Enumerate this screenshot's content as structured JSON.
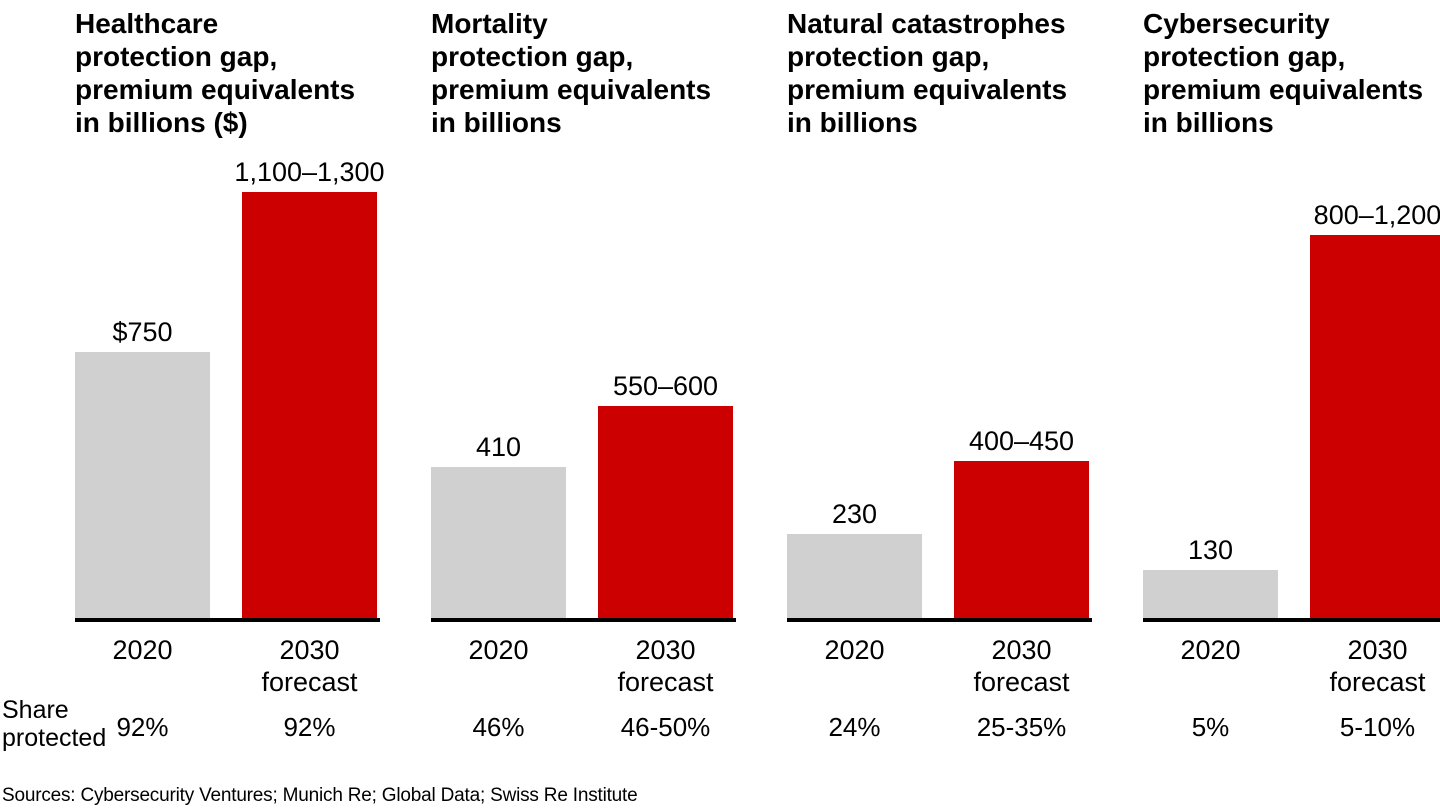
{
  "colors": {
    "bar_2020_gray": "#d0d0d0",
    "bar_2030_red": "#cc0000",
    "axis_black": "#000000",
    "text_black": "#000000",
    "background": "#ffffff"
  },
  "share_protected_label": "Share\nprotected",
  "sources": "Sources: Cybersecurity Ventures; Munich Re; Global Data; Swiss Re Institute",
  "chart_data": [
    {
      "type": "bar",
      "title": "Healthcare\nprotection gap,\npremium equivalents\nin billions ($)",
      "categories": [
        "2020",
        "2030\nforecast"
      ],
      "values": [
        750,
        [
          1100,
          1300
        ]
      ],
      "value_labels": [
        "$750",
        "1,100–1,300"
      ],
      "share_protected": [
        "92%",
        "92%"
      ],
      "bar_colors": [
        "#d0d0d0",
        "#cc0000"
      ],
      "grid": false,
      "legend": "none"
    },
    {
      "type": "bar",
      "title": "Mortality\nprotection gap,\npremium equivalents\nin billions",
      "categories": [
        "2020",
        "2030\nforecast"
      ],
      "values": [
        410,
        [
          550,
          600
        ]
      ],
      "value_labels": [
        "410",
        "550–600"
      ],
      "share_protected": [
        "46%",
        "46-50%"
      ],
      "bar_colors": [
        "#d0d0d0",
        "#cc0000"
      ],
      "grid": false,
      "legend": "none"
    },
    {
      "type": "bar",
      "title": "Natural catastrophes\nprotection gap,\npremium equivalents\nin billions",
      "categories": [
        "2020",
        "2030\nforecast"
      ],
      "values": [
        230,
        [
          400,
          450
        ]
      ],
      "value_labels": [
        "230",
        "400–450"
      ],
      "share_protected": [
        "24%",
        "25-35%"
      ],
      "bar_colors": [
        "#d0d0d0",
        "#cc0000"
      ],
      "grid": false,
      "legend": "none"
    },
    {
      "type": "bar",
      "title": "Cybersecurity\nprotection gap,\npremium equivalents\nin billions",
      "categories": [
        "2020",
        "2030\nforecast"
      ],
      "values": [
        130,
        [
          800,
          1200
        ]
      ],
      "value_labels": [
        "130",
        "800–1,200"
      ],
      "share_protected": [
        "5%",
        "5-10%"
      ],
      "bar_colors": [
        "#d0d0d0",
        "#cc0000"
      ],
      "grid": false,
      "legend": "none"
    }
  ]
}
